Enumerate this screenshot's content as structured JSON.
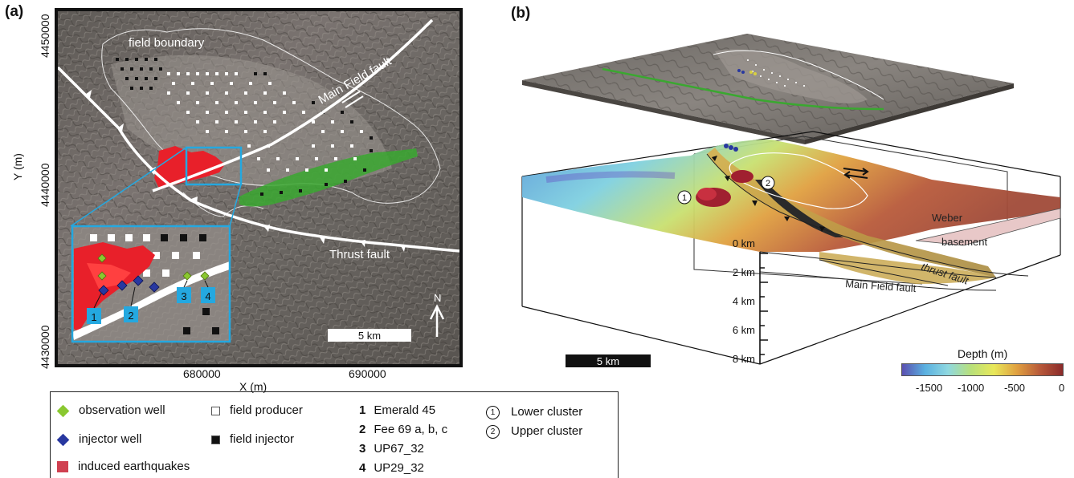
{
  "panel_a": {
    "label": "(a)",
    "y_axis_label": "Y (m)",
    "x_axis_label": "X (m)",
    "y_ticks": [
      "4450000",
      "4440000",
      "4430000"
    ],
    "x_ticks": [
      "680000",
      "690000"
    ],
    "labels": {
      "field_boundary": "field boundary",
      "main_field_fault": "Main Field fault",
      "thrust_fault": "Thrust fault",
      "north": "N",
      "scale": "5 km"
    },
    "inset_wells": [
      "1",
      "2",
      "3",
      "4"
    ]
  },
  "panel_b": {
    "label": "(b)",
    "labels": {
      "weber": "Weber",
      "basement": "basement",
      "thrust_fault": "thrust fault",
      "main_field_fault": "Main Field fault",
      "scale": "5 km",
      "lower_cluster_marker": "1",
      "upper_cluster_marker": "2"
    },
    "depth_ticks": [
      "0 km",
      "2 km",
      "4 km",
      "6 km",
      "8 km"
    ],
    "colorbar": {
      "title": "Depth (m)",
      "ticks": [
        "-1500",
        "-1000",
        "-500",
        "0"
      ],
      "colors": [
        "#5a4fb0",
        "#5ab0e0",
        "#8fd8e0",
        "#b8e07a",
        "#e8e85a",
        "#e0a040",
        "#b85a3a",
        "#8a2a2a"
      ]
    }
  },
  "legend": {
    "observation_well": "observation well",
    "injector_well": "injector well",
    "induced_earthquakes": "induced earthquakes",
    "field_producer": "field producer",
    "field_injector": "field injector",
    "wells": [
      {
        "num": "1",
        "name": "Emerald 45"
      },
      {
        "num": "2",
        "name": "Fee 69 a, b, c"
      },
      {
        "num": "3",
        "name": "UP67_32"
      },
      {
        "num": "4",
        "name": "UP29_32"
      }
    ],
    "clusters": [
      {
        "num": "1",
        "name": "Lower cluster"
      },
      {
        "num": "2",
        "name": "Upper cluster"
      }
    ]
  }
}
